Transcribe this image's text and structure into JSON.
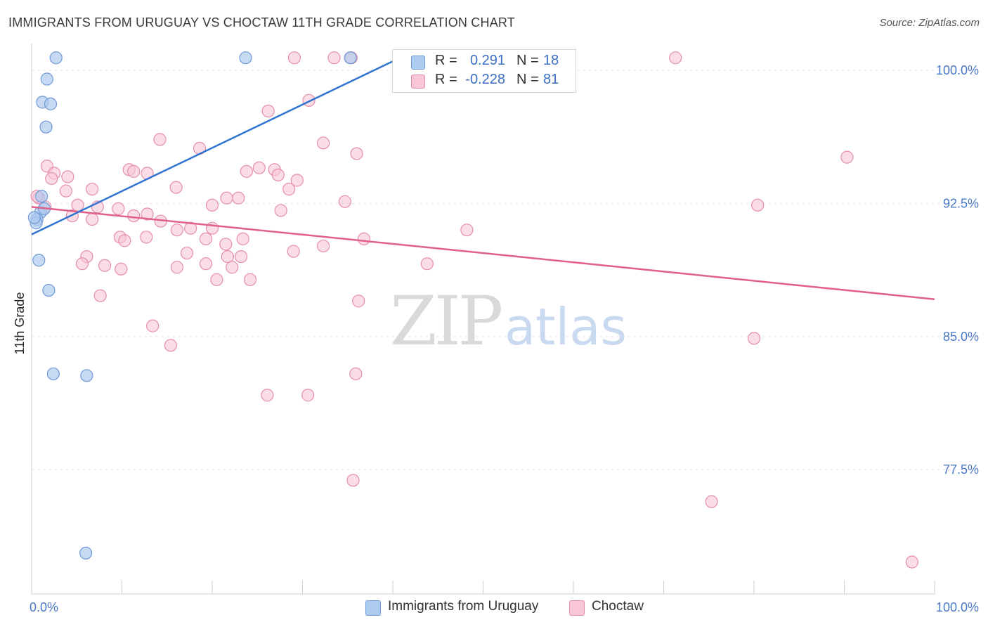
{
  "title": "IMMIGRANTS FROM URUGUAY VS CHOCTAW 11TH GRADE CORRELATION CHART",
  "source": "Source: ZipAtlas.com",
  "watermark": {
    "zip": "ZIP",
    "atlas": "atlas"
  },
  "legend_top": [
    {
      "r_label": "R =",
      "r_value": "0.291",
      "n_label": "N =",
      "n_value": "18"
    },
    {
      "r_label": "R =",
      "r_value": "-0.228",
      "n_label": "N =",
      "n_value": "81"
    }
  ],
  "legend_bottom": [
    {
      "label": "Immigrants from Uruguay"
    },
    {
      "label": "Choctaw"
    }
  ],
  "colors": {
    "series1_fill": "#aecbf0",
    "series1_stroke": "#6f9ad6",
    "series1_line": "#2f74d0",
    "series2_fill": "#f8c6d4",
    "series2_stroke": "#e58eab",
    "series2_line": "#e0608c",
    "axis_text": "#4a78c8",
    "grid": "#e6e6e6"
  },
  "chart_data": {
    "type": "scatter",
    "title": "IMMIGRANTS FROM URUGUAY VS CHOCTAW 11TH GRADE CORRELATION CHART",
    "xlabel": "",
    "ylabel": "11th Grade",
    "xlim": [
      0,
      100
    ],
    "ylim": [
      70.5,
      101.5
    ],
    "x_tick_labels": [
      "0.0%",
      "100.0%"
    ],
    "y_ticks": [
      77.5,
      85.0,
      92.5,
      100.0
    ],
    "y_tick_labels": [
      "77.5%",
      "85.0%",
      "92.5%",
      "100.0%"
    ],
    "grid": true,
    "series": [
      {
        "name": "Immigrants from Uruguay",
        "r": 0.291,
        "n": 18,
        "trend": {
          "x0": 0,
          "y0": 90.75,
          "x1": 40.8,
          "y1": 100.7
        },
        "points": [
          [
            2.7,
            100.7
          ],
          [
            23.7,
            100.7
          ],
          [
            35.3,
            100.7
          ],
          [
            1.7,
            99.5
          ],
          [
            1.2,
            98.2
          ],
          [
            2.1,
            98.1
          ],
          [
            1.6,
            96.8
          ],
          [
            1.1,
            92.9
          ],
          [
            1.0,
            92.0
          ],
          [
            0.6,
            91.6
          ],
          [
            0.5,
            91.4
          ],
          [
            0.8,
            89.3
          ],
          [
            1.9,
            87.6
          ],
          [
            2.4,
            82.9
          ],
          [
            6.1,
            82.8
          ],
          [
            6.0,
            72.8
          ],
          [
            0.3,
            91.7
          ],
          [
            1.4,
            92.2
          ]
        ]
      },
      {
        "name": "Choctaw",
        "r": -0.228,
        "n": 81,
        "trend": {
          "x0": 0,
          "y0": 92.3,
          "x1": 100,
          "y1": 87.1
        },
        "points": [
          [
            29.1,
            100.7
          ],
          [
            33.5,
            100.7
          ],
          [
            35.4,
            100.7
          ],
          [
            71.3,
            100.7
          ],
          [
            30.7,
            98.3
          ],
          [
            26.2,
            97.7
          ],
          [
            14.2,
            96.1
          ],
          [
            32.3,
            95.9
          ],
          [
            18.6,
            95.6
          ],
          [
            36.0,
            95.3
          ],
          [
            90.3,
            95.1
          ],
          [
            1.7,
            94.6
          ],
          [
            10.8,
            94.4
          ],
          [
            11.3,
            94.3
          ],
          [
            12.8,
            94.2
          ],
          [
            2.5,
            94.2
          ],
          [
            4.0,
            94.0
          ],
          [
            2.2,
            93.9
          ],
          [
            25.2,
            94.5
          ],
          [
            23.8,
            94.3
          ],
          [
            26.9,
            94.4
          ],
          [
            27.3,
            94.1
          ],
          [
            29.4,
            93.8
          ],
          [
            16.0,
            93.4
          ],
          [
            6.7,
            93.3
          ],
          [
            28.5,
            93.3
          ],
          [
            3.8,
            93.2
          ],
          [
            21.6,
            92.8
          ],
          [
            22.9,
            92.8
          ],
          [
            34.7,
            92.6
          ],
          [
            0.8,
            92.8
          ],
          [
            1.5,
            92.3
          ],
          [
            5.1,
            92.4
          ],
          [
            7.3,
            92.3
          ],
          [
            9.6,
            92.2
          ],
          [
            20.0,
            92.4
          ],
          [
            80.4,
            92.4
          ],
          [
            27.6,
            92.1
          ],
          [
            4.5,
            91.8
          ],
          [
            6.7,
            91.6
          ],
          [
            14.3,
            91.5
          ],
          [
            11.3,
            91.8
          ],
          [
            12.8,
            91.9
          ],
          [
            17.6,
            91.1
          ],
          [
            20.0,
            91.1
          ],
          [
            9.8,
            90.6
          ],
          [
            12.7,
            90.6
          ],
          [
            16.1,
            91.0
          ],
          [
            19.3,
            90.5
          ],
          [
            21.5,
            90.2
          ],
          [
            10.3,
            90.4
          ],
          [
            23.4,
            90.5
          ],
          [
            36.8,
            90.5
          ],
          [
            48.2,
            91.0
          ],
          [
            32.3,
            90.1
          ],
          [
            17.2,
            89.7
          ],
          [
            29.0,
            89.8
          ],
          [
            19.3,
            89.1
          ],
          [
            21.7,
            89.5
          ],
          [
            23.2,
            89.5
          ],
          [
            6.1,
            89.5
          ],
          [
            5.6,
            89.1
          ],
          [
            8.1,
            89.0
          ],
          [
            9.9,
            88.8
          ],
          [
            16.1,
            88.9
          ],
          [
            22.2,
            88.9
          ],
          [
            43.8,
            89.1
          ],
          [
            20.5,
            88.2
          ],
          [
            24.2,
            88.2
          ],
          [
            7.6,
            87.3
          ],
          [
            36.2,
            87.0
          ],
          [
            13.4,
            85.6
          ],
          [
            15.4,
            84.5
          ],
          [
            80.0,
            84.9
          ],
          [
            35.9,
            82.9
          ],
          [
            26.1,
            81.7
          ],
          [
            30.6,
            81.7
          ],
          [
            35.6,
            76.9
          ],
          [
            75.3,
            75.7
          ],
          [
            97.5,
            72.3
          ],
          [
            0.6,
            92.9
          ]
        ]
      }
    ]
  }
}
